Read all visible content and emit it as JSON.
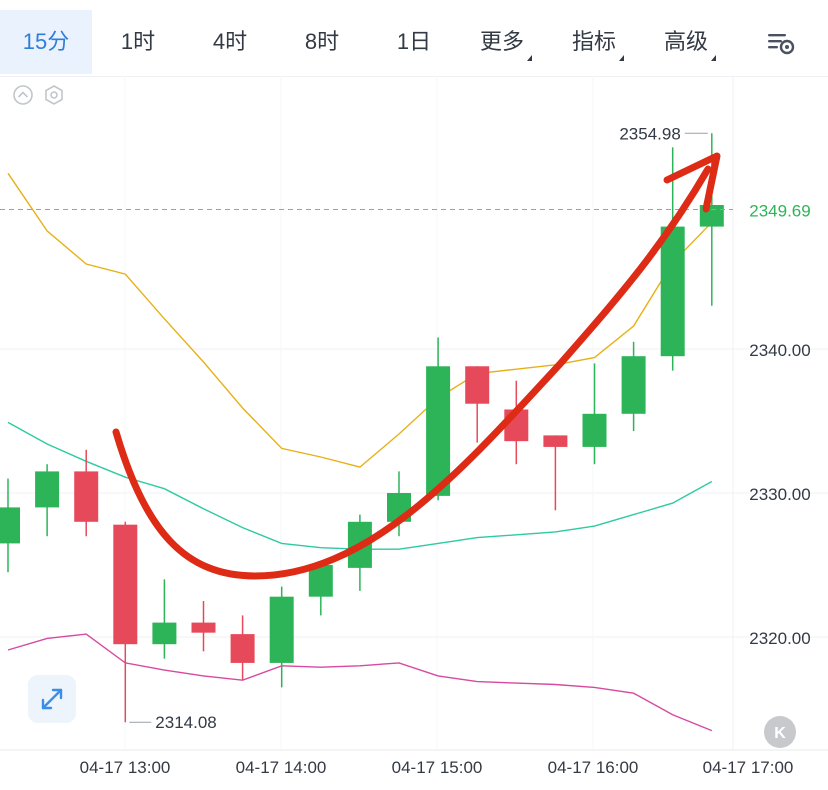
{
  "toolbar": {
    "tabs": [
      {
        "label": "15分",
        "active": true,
        "dropdown": false
      },
      {
        "label": "1时",
        "active": false,
        "dropdown": false
      },
      {
        "label": "4时",
        "active": false,
        "dropdown": false
      },
      {
        "label": "8时",
        "active": false,
        "dropdown": false
      },
      {
        "label": "1日",
        "active": false,
        "dropdown": false
      },
      {
        "label": "更多",
        "active": false,
        "dropdown": true
      },
      {
        "label": "指标",
        "active": false,
        "dropdown": true
      },
      {
        "label": "高级",
        "active": false,
        "dropdown": true
      }
    ],
    "settings_icon": "chart-settings-icon"
  },
  "chart_data": {
    "type": "candlestick",
    "x_tick_labels": [
      "04-17 13:00",
      "04-17 14:00",
      "04-17 15:00",
      "04-17 16:00",
      "04-17 17:00"
    ],
    "y_tick_labels": [
      "2340.00",
      "2330.00",
      "2320.00"
    ],
    "ylim": [
      2311,
      2360
    ],
    "grid": true,
    "max_label": "2354.98",
    "min_label": "2314.08",
    "current_price": "2349.69",
    "candles": [
      {
        "open": 2326.5,
        "high": 2331.0,
        "low": 2324.5,
        "close": 2329.0
      },
      {
        "open": 2329.0,
        "high": 2332.0,
        "low": 2327.0,
        "close": 2331.5
      },
      {
        "open": 2331.5,
        "high": 2333.0,
        "low": 2327.0,
        "close": 2328.0
      },
      {
        "open": 2327.8,
        "high": 2328.0,
        "low": 2314.08,
        "close": 2319.5
      },
      {
        "open": 2319.5,
        "high": 2324.0,
        "low": 2318.5,
        "close": 2321.0
      },
      {
        "open": 2321.0,
        "high": 2322.5,
        "low": 2319.0,
        "close": 2320.3
      },
      {
        "open": 2320.2,
        "high": 2321.5,
        "low": 2317.0,
        "close": 2318.2
      },
      {
        "open": 2318.2,
        "high": 2323.5,
        "low": 2316.5,
        "close": 2322.8
      },
      {
        "open": 2322.8,
        "high": 2325.0,
        "low": 2321.5,
        "close": 2325.0
      },
      {
        "open": 2324.8,
        "high": 2328.5,
        "low": 2323.2,
        "close": 2328.0
      },
      {
        "open": 2328.0,
        "high": 2331.5,
        "low": 2327.0,
        "close": 2330.0
      },
      {
        "open": 2329.8,
        "high": 2340.8,
        "low": 2329.5,
        "close": 2338.8
      },
      {
        "open": 2338.8,
        "high": 2338.8,
        "low": 2333.5,
        "close": 2336.2
      },
      {
        "open": 2335.8,
        "high": 2337.8,
        "low": 2332.0,
        "close": 2333.6
      },
      {
        "open": 2334.0,
        "high": 2334.0,
        "low": 2328.8,
        "close": 2333.2
      },
      {
        "open": 2333.2,
        "high": 2339.0,
        "low": 2332.0,
        "close": 2335.5
      },
      {
        "open": 2335.5,
        "high": 2340.5,
        "low": 2334.3,
        "close": 2339.5
      },
      {
        "open": 2339.5,
        "high": 2354.0,
        "low": 2338.5,
        "close": 2348.5
      },
      {
        "open": 2348.5,
        "high": 2354.98,
        "low": 2343.0,
        "close": 2350.0
      }
    ],
    "series": [
      {
        "color": "#e8b018",
        "values": [
          2352.2,
          2348.2,
          2345.9,
          2345.2,
          2342.1,
          2339.1,
          2335.9,
          2333.1,
          2332.5,
          2331.8,
          2334.1,
          2336.6,
          2338.3,
          2338.6,
          2338.9,
          2339.4,
          2341.6,
          2346.0,
          2348.8
        ]
      },
      {
        "color": "#2ecaa0",
        "values": [
          2334.9,
          2333.4,
          2332.2,
          2331.1,
          2330.3,
          2328.9,
          2327.6,
          2326.5,
          2326.2,
          2326.1,
          2326.1,
          2326.5,
          2326.9,
          2327.1,
          2327.3,
          2327.7,
          2328.5,
          2329.3,
          2330.8
        ]
      },
      {
        "color": "#d64aa0",
        "values": [
          2319.1,
          2319.9,
          2320.2,
          2318.2,
          2317.7,
          2317.3,
          2317.0,
          2318.0,
          2317.9,
          2318.0,
          2318.2,
          2317.3,
          2316.9,
          2316.8,
          2316.7,
          2316.5,
          2316.1,
          2314.6,
          2313.5
        ]
      }
    ]
  },
  "controls": {
    "expand_icon": "expand-arrows-icon",
    "k_button": "K"
  }
}
